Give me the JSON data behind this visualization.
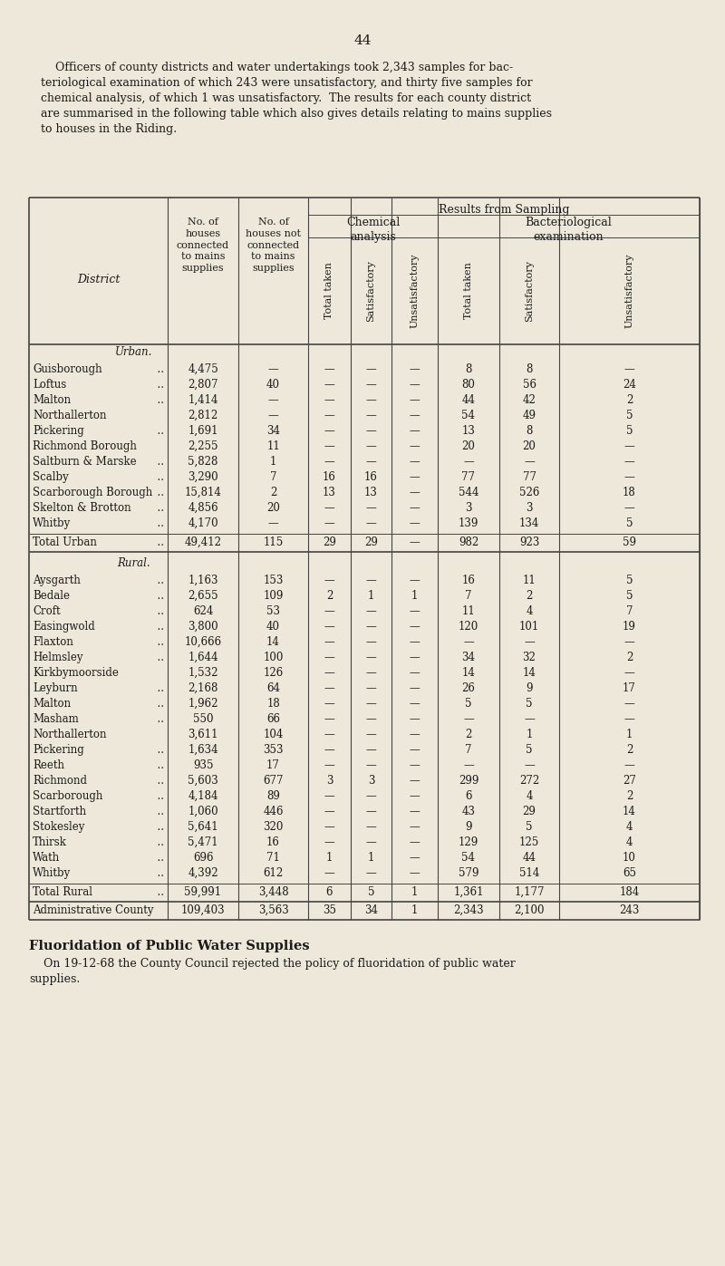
{
  "page_number": "44",
  "intro_text_lines": [
    "    Officers of county districts and water undertakings took 2,343 samples for bac-",
    "teriological examination of which 243 were unsatisfactory, and thirty five samples for",
    "chemical analysis, of which 1 was unsatisfactory.  The results for each county district",
    "are summarised in the following table which also gives details relating to mains supplies",
    "to houses in the Riding."
  ],
  "bg_color": "#ede8da",
  "text_color": "#1a1a1a",
  "col_headers_rotated": [
    "Total taken",
    "Satisfactory",
    "Unsatisfactory",
    "Total taken",
    "Satisfactory",
    "Unsatisfactory"
  ],
  "results_from_sampling": "Results from Sampling",
  "chemical_analysis": "Chemical\nanalysis",
  "bacteriological_examination": "Bacteriological\nexamination",
  "district_label": "District",
  "urban_header": "Urban.",
  "rural_header": "Rural.",
  "urban_rows": [
    [
      "Guisborough",
      "  ..",
      "4,475",
      "—",
      "—",
      "—",
      "—",
      "8",
      "8",
      "—"
    ],
    [
      "Loftus",
      "  ..",
      "2,807",
      "40",
      "—",
      "—",
      "—",
      "80",
      "56",
      "24"
    ],
    [
      "Malton",
      "  ..",
      "1,414",
      "—",
      "—",
      "—",
      "—",
      "44",
      "42",
      "2"
    ],
    [
      "Northallerton",
      "",
      "2,812",
      "—",
      "—",
      "—",
      "—",
      "54",
      "49",
      "5"
    ],
    [
      "Pickering",
      "  ..",
      "1,691",
      "34",
      "—",
      "—",
      "—",
      "13",
      "8",
      "5"
    ],
    [
      "Richmond Borough",
      "",
      "2,255",
      "11",
      "—",
      "—",
      "—",
      "20",
      "20",
      "—"
    ],
    [
      "Saltburn & Marske",
      "  ..",
      "5,828",
      "1",
      "—",
      "—",
      "—",
      "—",
      "—",
      "—"
    ],
    [
      "Scalby",
      "  ..",
      "3,290",
      "7",
      "16",
      "16",
      "—",
      "77",
      "77",
      "—"
    ],
    [
      "Scarborough Borough",
      "  ..",
      "15,814",
      "2",
      "13",
      "13",
      "—",
      "544",
      "526",
      "18"
    ],
    [
      "Skelton & Brotton",
      "  ..",
      "4,856",
      "20",
      "—",
      "—",
      "—",
      "3",
      "3",
      "—"
    ],
    [
      "Whitby",
      "  ..",
      "4,170",
      "—",
      "—",
      "—",
      "—",
      "139",
      "134",
      "5"
    ]
  ],
  "urban_total": [
    "Total Urban",
    "  ..",
    "49,412",
    "115",
    "29",
    "29",
    "—",
    "982",
    "923",
    "59"
  ],
  "rural_rows": [
    [
      "Aysgarth",
      "  ..",
      "1,163",
      "153",
      "—",
      "—",
      "—",
      "16",
      "11",
      "5"
    ],
    [
      "Bedale",
      "  ..",
      "2,655",
      "109",
      "2",
      "1",
      "1",
      "7",
      "2",
      "5"
    ],
    [
      "Croft",
      "  ..",
      "624",
      "53",
      "—",
      "—",
      "—",
      "11",
      "4",
      "7"
    ],
    [
      "Easingwold",
      "  ..",
      "3,800",
      "40",
      "—",
      "—",
      "—",
      "120",
      "101",
      "19"
    ],
    [
      "Flaxton",
      "  ..",
      "10,666",
      "14",
      "—",
      "—",
      "—",
      "—",
      "—",
      "—"
    ],
    [
      "Helmsley",
      "  ..",
      "1,644",
      "100",
      "—",
      "—",
      "—",
      "34",
      "32",
      "2"
    ],
    [
      "Kirkbymoorside",
      "",
      "1,532",
      "126",
      "—",
      "—",
      "—",
      "14",
      "14",
      "—"
    ],
    [
      "Leyburn",
      "  ..",
      "2,168",
      "64",
      "—",
      "—",
      "—",
      "26",
      "9",
      "17"
    ],
    [
      "Malton",
      "  ..",
      "1,962",
      "18",
      "—",
      "—",
      "—",
      "5",
      "5",
      "—"
    ],
    [
      "Masham",
      "  ..",
      "550",
      "66",
      "—",
      "—",
      "—",
      "—",
      "—",
      "—"
    ],
    [
      "Northallerton",
      "",
      "3,611",
      "104",
      "—",
      "—",
      "—",
      "2",
      "1",
      "1"
    ],
    [
      "Pickering",
      "  ..",
      "1,634",
      "353",
      "—",
      "—",
      "—",
      "7",
      "5",
      "2"
    ],
    [
      "Reeth",
      "  ..",
      "935",
      "17",
      "—",
      "—",
      "—",
      "—",
      "—",
      "—"
    ],
    [
      "Richmond",
      "  ..",
      "5,603",
      "677",
      "3",
      "3",
      "—",
      "299",
      "272",
      "27"
    ],
    [
      "Scarborough",
      "  ..",
      "4,184",
      "89",
      "—",
      "—",
      "—",
      "6",
      "4",
      "2"
    ],
    [
      "Startforth",
      "  ..",
      "1,060",
      "446",
      "—",
      "—",
      "—",
      "43",
      "29",
      "14"
    ],
    [
      "Stokesley",
      "  ..",
      "5,641",
      "320",
      "—",
      "—",
      "—",
      "9",
      "5",
      "4"
    ],
    [
      "Thirsk",
      "  ..",
      "5,471",
      "16",
      "—",
      "—",
      "—",
      "129",
      "125",
      "4"
    ],
    [
      "Wath",
      "  ..",
      "696",
      "71",
      "1",
      "1",
      "—",
      "54",
      "44",
      "10"
    ],
    [
      "Whitby",
      "  ..",
      "4,392",
      "612",
      "—",
      "—",
      "—",
      "579",
      "514",
      "65"
    ]
  ],
  "rural_total": [
    "Total Rural",
    "  ..",
    "59,991",
    "3,448",
    "6",
    "5",
    "1",
    "1,361",
    "1,177",
    "184"
  ],
  "admin_total": [
    "Administrative County",
    "",
    "109,403",
    "3,563",
    "35",
    "34",
    "1",
    "2,343",
    "2,100",
    "243"
  ],
  "fluoridation_title": "Fluoridation of Public Water Supplies",
  "fluoridation_text_lines": [
    "    On 19-12-68 the County Council rejected the policy of fluoridation of public water",
    "supplies."
  ]
}
